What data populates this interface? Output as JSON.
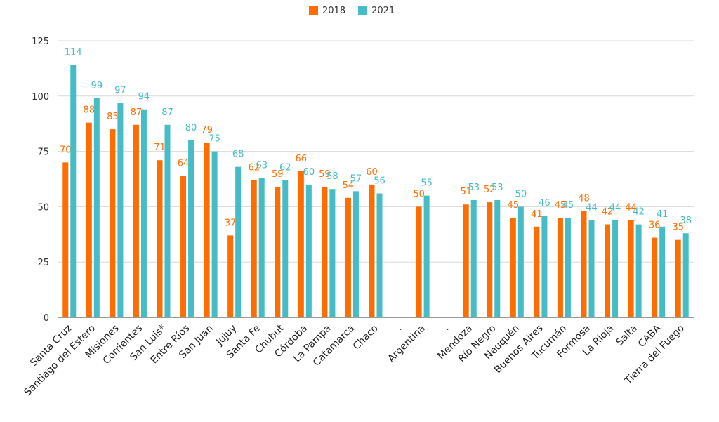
{
  "chart_data": {
    "type": "bar",
    "categories": [
      "Santa Cruz",
      "Santiago del Estero",
      "Misiones",
      "Corrientes",
      "San Luis*",
      "Entre Ríos",
      "San Juan",
      "Jujuy",
      "Santa Fe",
      "Chubut",
      "Córdoba",
      "La Pampa",
      "Catamarca",
      "Chaco",
      ".",
      "Argentina",
      ".",
      "Mendoza",
      "Río Negro",
      "Neuquén",
      "Buenos Aires",
      "Tucumán",
      "Formosa",
      "La Rioja",
      "Salta",
      "CABA",
      "Tierra del Fuego"
    ],
    "series": [
      {
        "name": "2018",
        "color": "#ff6d01",
        "values": [
          70,
          88,
          85,
          87,
          71,
          64,
          79,
          37,
          62,
          59,
          66,
          59,
          54,
          60,
          null,
          50,
          null,
          51,
          52,
          45,
          41,
          45,
          48,
          42,
          44,
          36,
          35
        ]
      },
      {
        "name": "2021",
        "color": "#46bdc6",
        "values": [
          114,
          99,
          97,
          94,
          87,
          80,
          75,
          68,
          63,
          62,
          60,
          58,
          57,
          56,
          null,
          55,
          null,
          53,
          53,
          50,
          46,
          45,
          44,
          44,
          42,
          41,
          38
        ]
      }
    ],
    "data_labels": {
      "2018": [
        "70",
        "88",
        "85",
        "87",
        "71",
        "64",
        "79",
        "37",
        "62",
        "59",
        "66",
        "59",
        "54",
        "60",
        "",
        "50",
        "",
        "51",
        "52",
        "45",
        "41",
        "45",
        "48",
        "42",
        "44",
        "36",
        "35"
      ],
      "2021": [
        "114",
        "99",
        "97",
        "94",
        "87",
        "80",
        "75",
        "68",
        "63",
        "62",
        "60",
        "58",
        "57",
        "56",
        "",
        "55",
        "",
        "53",
        "53",
        "50",
        "46",
        "45",
        "44",
        "44",
        "42",
        "41",
        "38"
      ]
    },
    "yticks": [
      "0",
      "25",
      "50",
      "75",
      "100",
      "125"
    ],
    "ylim": [
      0,
      125
    ],
    "grid": true,
    "legend_position": "top-center"
  }
}
